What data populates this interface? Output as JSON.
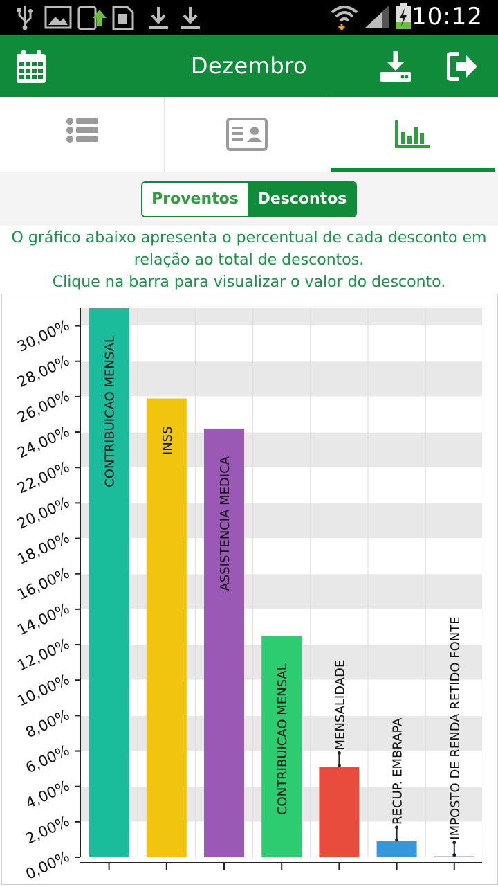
{
  "status_bar": {
    "time": "10:12",
    "icons": [
      "usb-icon",
      "image-icon",
      "phone-update-icon",
      "sd-card-icon",
      "download-icon",
      "download-icon",
      "wifi-icon",
      "signal-icon",
      "battery-charging-icon"
    ]
  },
  "app_bar": {
    "title": "Dezembro",
    "left_icon": "calendar-icon",
    "right_icons": [
      "download-icon",
      "logout-icon"
    ]
  },
  "tabs": [
    {
      "icon": "list-icon",
      "active": false
    },
    {
      "icon": "id-card-icon",
      "active": false
    },
    {
      "icon": "bar-chart-icon",
      "active": true
    }
  ],
  "segment": {
    "options": [
      "Proventos",
      "Descontos"
    ],
    "selected": "Descontos"
  },
  "description": {
    "line1": "O gráfico abaixo apresenta o percentual de cada desconto em",
    "line2": "relação ao total de descontos.",
    "line3": "Clique na barra para visualizar o valor do desconto."
  },
  "colors": {
    "primary": "#0f8b3a",
    "accent_text": "#169447"
  },
  "chart_data": {
    "type": "bar",
    "categories": [
      "CONTRIBUICAO MENSAL",
      "INSS",
      "ASSISTENCIA MEDICA",
      "CONTRIBUICAO MENSAL",
      "MENSALIDADE",
      "RECUP. EMBRAPA",
      "IMPOSTO DE RENDA RETIDO FONTE"
    ],
    "values": [
      31.0,
      25.9,
      24.2,
      12.5,
      5.1,
      0.9,
      0.05
    ],
    "colors": [
      "#1abc9c",
      "#f1c40f",
      "#9b59b6",
      "#2ecc71",
      "#e74c3c",
      "#3498db",
      "#2c3e50"
    ],
    "ylim": [
      0,
      31
    ],
    "yticks": [
      "0,00%",
      "2,00%",
      "4,00%",
      "6,00%",
      "8,00%",
      "10,00%",
      "12,00%",
      "14,00%",
      "16,00%",
      "18,00%",
      "20,00%",
      "22,00%",
      "24,00%",
      "26,00%",
      "28,00%",
      "30,00%"
    ],
    "ytick_values": [
      0,
      2,
      4,
      6,
      8,
      10,
      12,
      14,
      16,
      18,
      20,
      22,
      24,
      26,
      28,
      30
    ],
    "grid": true,
    "legend": "none"
  }
}
